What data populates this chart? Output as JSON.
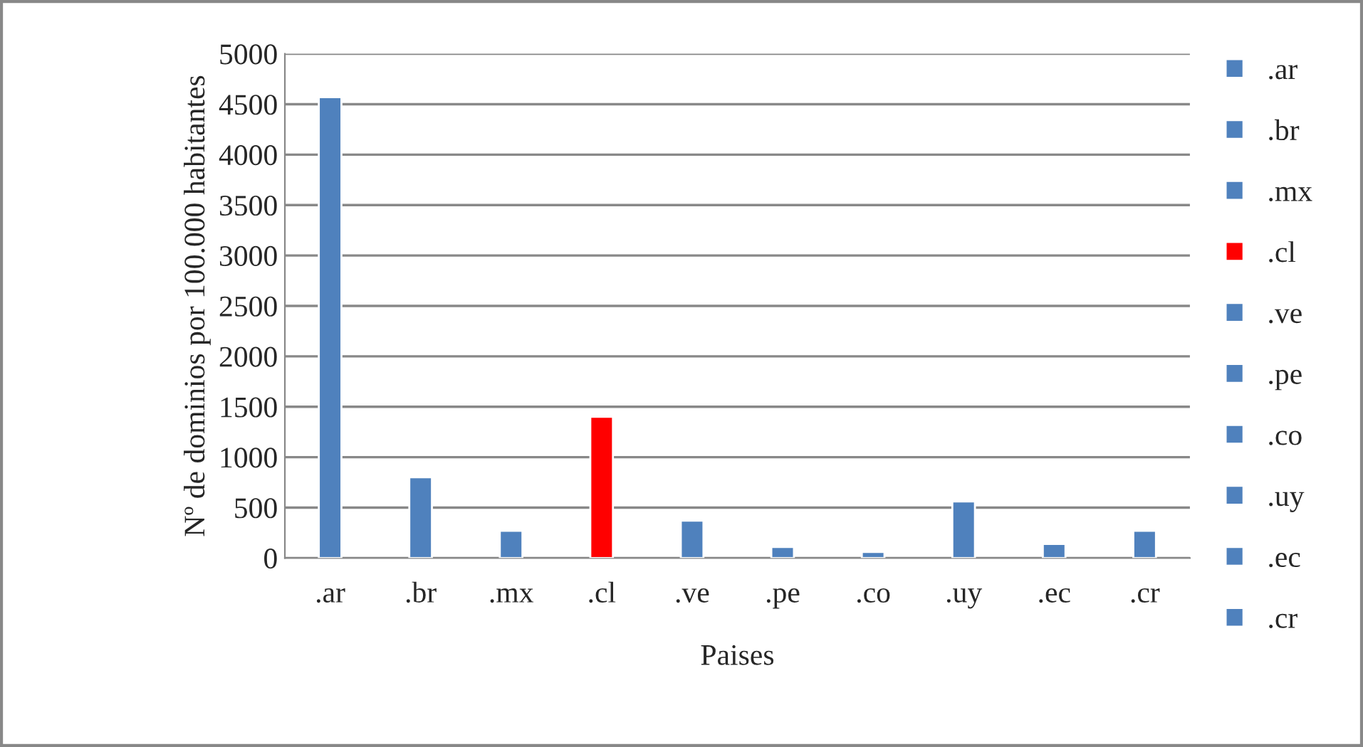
{
  "chart_data": {
    "type": "bar",
    "xlabel": "Paises",
    "ylabel": "Nº de dominios por 100.000 habitantes",
    "categories": [
      ".ar",
      ".br",
      ".mx",
      ".cl",
      ".ve",
      ".pe",
      ".co",
      ".uy",
      ".ec",
      ".cr"
    ],
    "stacked": true,
    "series": [
      {
        "name": ".ar",
        "color": "#4f81bd",
        "values": [
          4570,
          null,
          null,
          null,
          null,
          null,
          null,
          null,
          null,
          null
        ]
      },
      {
        "name": ".br",
        "color": "#4f81bd",
        "values": [
          null,
          800,
          null,
          null,
          null,
          null,
          null,
          null,
          null,
          null
        ]
      },
      {
        "name": ".mx",
        "color": "#4f81bd",
        "values": [
          null,
          null,
          270,
          null,
          null,
          null,
          null,
          null,
          null,
          null
        ]
      },
      {
        "name": ".cl",
        "color": "#ff0000",
        "values": [
          null,
          null,
          null,
          1400,
          null,
          null,
          null,
          null,
          null,
          null
        ]
      },
      {
        "name": ".ve",
        "color": "#4f81bd",
        "values": [
          null,
          null,
          null,
          null,
          370,
          null,
          null,
          null,
          null,
          null
        ]
      },
      {
        "name": ".pe",
        "color": "#4f81bd",
        "values": [
          null,
          null,
          null,
          null,
          null,
          110,
          null,
          null,
          null,
          null
        ]
      },
      {
        "name": ".co",
        "color": "#4f81bd",
        "values": [
          null,
          null,
          null,
          null,
          null,
          null,
          60,
          null,
          null,
          null
        ]
      },
      {
        "name": ".uy",
        "color": "#4f81bd",
        "values": [
          null,
          null,
          null,
          null,
          null,
          null,
          null,
          560,
          null,
          null
        ]
      },
      {
        "name": ".ec",
        "color": "#4f81bd",
        "values": [
          null,
          null,
          null,
          null,
          null,
          null,
          null,
          null,
          140,
          null
        ]
      },
      {
        "name": ".cr",
        "color": "#4f81bd",
        "values": [
          null,
          null,
          null,
          null,
          null,
          null,
          null,
          null,
          null,
          270
        ]
      }
    ],
    "ylim": [
      0,
      5000
    ],
    "yticks": [
      0,
      500,
      1000,
      1500,
      2000,
      2500,
      3000,
      3500,
      4000,
      4500,
      5000
    ],
    "grid": "y",
    "legend": "right"
  }
}
